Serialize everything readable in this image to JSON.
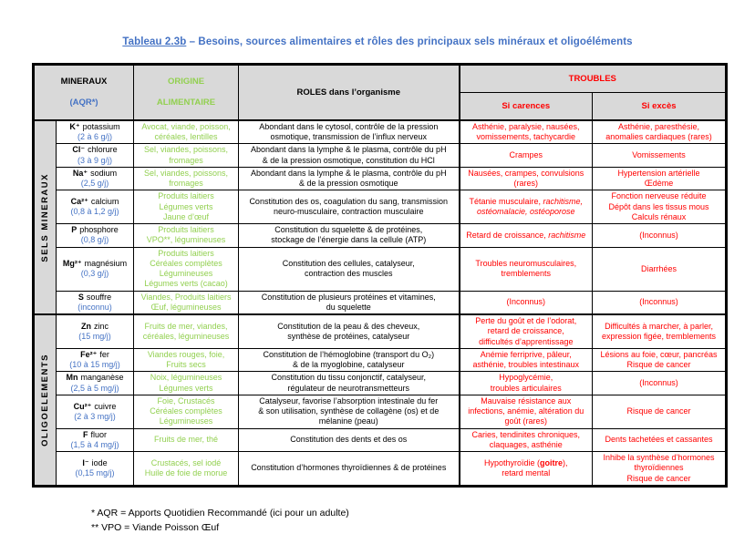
{
  "title": {
    "ref": "Tableau 2.3b",
    "text": " – Besoins, sources alimentaires et rôles des principaux sels minéraux et oligoéléments"
  },
  "header": {
    "minerals_line1": "MINERAUX",
    "minerals_line2": "(AQR*)",
    "origin_line1": "ORIGINE",
    "origin_line2": "ALIMENTAIRE",
    "roles": "ROLES dans l’organisme",
    "troubles": "TROUBLES",
    "deficiency": "Si carences",
    "excess": "Si excès"
  },
  "colors": {
    "accent_blue": "#4472C4",
    "origin_green": "#92D050",
    "trouble_red": "#FF0000",
    "header_gray": "#d9d9d9"
  },
  "sections": [
    {
      "label": "SELS MINERAUX",
      "rows": [
        {
          "symbol": "K⁺",
          "name": "potassium",
          "aqr": "(2 à 6 g/j)",
          "origin": "Avocat, viande, poisson,\ncéréales, lentilles",
          "role": "Abondant dans le cytosol, contrôle de la pression\nosmotique, transmission de l’influx nerveux",
          "deficiency": "Asthénie, paralysie, nausées,\nvomissements, tachycardie",
          "excess": "Asthénie, paresthésie,\nanomalies cardiaques (rares)"
        },
        {
          "symbol": "Cl⁻",
          "name": "chlorure",
          "aqr": "(3 à 9 g/j)",
          "origin": "Sel, viandes, poissons,\nfromages",
          "role": "Abondant dans la lymphe & le plasma, contrôle du pH\n& de la pression osmotique, constitution du HCl",
          "deficiency": "Crampes",
          "excess": "Vomissements"
        },
        {
          "symbol": "Na⁺",
          "name": "sodium",
          "aqr": "(2,5 g/j)",
          "origin": "Sel, viandes, poissons,\nfromages",
          "role": "Abondant dans la lymphe & le plasma, contrôle du pH\n& de la pression osmotique",
          "deficiency": "Nausées, crampes, convulsions\n(rares)",
          "excess": "Hypertension artérielle\nŒdème"
        },
        {
          "symbol": "Ca²⁺",
          "name": "calcium",
          "aqr": "(0,8 à 1,2 g/j)",
          "origin": "Produits laitiers\nLégumes verts\nJaune d’œuf",
          "role": "Constitution des os, coagulation du sang, transmission\nneuro-musculaire, contraction musculaire",
          "deficiency": [
            {
              "t": "Tétanie musculaire, "
            },
            {
              "t": "rachitisme,\nostéomalacie, ostéoporose",
              "i": true
            }
          ],
          "excess": "Fonction nerveuse réduite\nDépôt dans les tissus mous\nCalculs rénaux"
        },
        {
          "symbol": "P",
          "name": "phosphore",
          "aqr": "(0,8 g/j)",
          "origin": "Produits laitiers\nVPO**, légumineuses",
          "role": "Constitution du squelette & de protéines,\nstockage de l’énergie dans la cellule (ATP)",
          "deficiency": [
            {
              "t": "Retard de croissance, "
            },
            {
              "t": "rachitisme",
              "i": true
            }
          ],
          "excess": "(Inconnus)"
        },
        {
          "symbol": "Mg²⁺",
          "name": "magnésium",
          "aqr": "(0,3 g/j)",
          "origin": "Produits laitiers\nCéréales complètes\nLégumineuses\nLégumes verts (cacao)",
          "role": "Constitution des cellules, catalyseur,\ncontraction des muscles",
          "deficiency": "Troubles neuromusculaires,\ntremblements",
          "excess": "Diarrhées"
        },
        {
          "symbol": "S",
          "name": "souffre",
          "aqr": "(inconnu)",
          "origin": "Viandes, Produits laitiers\nŒuf, légumineuses",
          "role": "Constitution de plusieurs protéines et vitamines,\ndu squelette",
          "deficiency": "(Inconnus)",
          "excess": "(Inconnus)"
        }
      ]
    },
    {
      "label": "OLIGOELEMENTS",
      "rows": [
        {
          "symbol": "Zn",
          "name": "zinc",
          "aqr": "(15 mg/j)",
          "origin": "Fruits de mer, viandes,\ncéréales, légumineuses",
          "role": "Constitution de la peau & des cheveux,\nsynthèse de protéines, catalyseur",
          "deficiency": "Perte du goût et de l’odorat,\nretard de croissance,\ndifficultés d’apprentissage",
          "excess": "Difficultés à marcher, à parler,\nexpression figée, tremblements"
        },
        {
          "symbol": "Fe²⁺",
          "name": "fer",
          "aqr": "(10 à 15 mg/j)",
          "origin": "Viandes rouges, foie,\nFruits secs",
          "role": "Constitution de l’hémoglobine (transport du O₂)\n& de la myoglobine, catalyseur",
          "deficiency": "Anémie ferriprive, pâleur,\nasthénie, troubles intestinaux",
          "excess": "Lésions au foie, cœur, pancréas\nRisque de cancer"
        },
        {
          "symbol": "Mn",
          "name": "manganèse",
          "aqr": "(2,5 à 5 mg/j)",
          "origin": "Noix, légumineuses\nLégumes verts",
          "role": "Constitution du tissu conjonctif, catalyseur,\nrégulateur de neurotransmetteurs",
          "deficiency": "Hypoglycémie,\ntroubles articulaires",
          "excess": "(Inconnus)"
        },
        {
          "symbol": "Cu²⁺",
          "name": "cuivre",
          "aqr": "(2 à 3 mg/j)",
          "origin": "Foie, Crustacés\nCéréales complètes\nLégumineuses",
          "role": "Catalyseur, favorise l’absorption intestinale du fer\n& son utilisation, synthèse de collagène (os) et de\nmélanine (peau)",
          "deficiency": "Mauvaise résistance aux\ninfections, anémie, altération du\ngoût (rares)",
          "excess": "Risque de cancer"
        },
        {
          "symbol": "F",
          "name": "fluor",
          "aqr": "(1,5 à 4 mg/j)",
          "origin": "Fruits de mer, thé",
          "role": "Constitution des dents et des os",
          "deficiency": "Caries, tendinites chroniques,\nclaquages, asthénie",
          "excess": "Dents tachetées et cassantes"
        },
        {
          "symbol": "I⁻",
          "name": "iode",
          "aqr": "(0,15 mg/j)",
          "origin": "Crustacés, sel iodé\nHuile de foie de morue",
          "role": "Constitution d’hormones thyroïdiennes & de protéines",
          "deficiency": [
            {
              "t": "Hypothyroïdie ("
            },
            {
              "t": "goitre",
              "b": true
            },
            {
              "t": "),\nretard mental"
            }
          ],
          "excess": "Inhibe la synthèse d’hormones\nthyroïdiennes\nRisque de cancer"
        }
      ]
    }
  ],
  "footnotes": [
    "* AQR = Apports Quotidien Recommandé (ici pour un adulte)",
    "** VPO = Viande Poisson Œuf"
  ]
}
